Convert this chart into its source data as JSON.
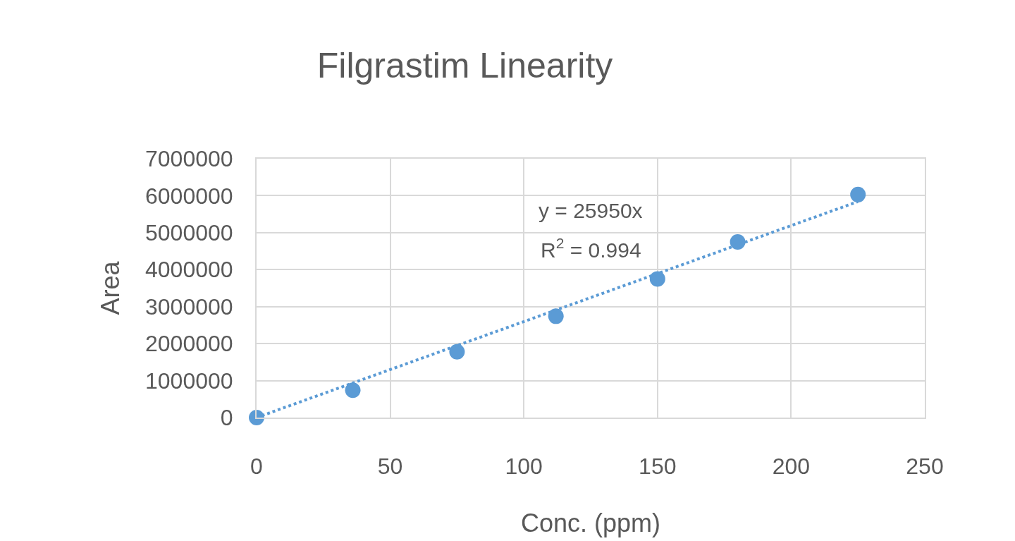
{
  "chart_data": {
    "type": "scatter",
    "title": "Filgrastim Linearity",
    "xlabel": "Conc. (ppm)",
    "ylabel": "Area",
    "x": [
      0,
      36,
      75,
      112,
      150,
      180,
      225
    ],
    "series": [
      {
        "color": "#5b9bd5",
        "marker": "circle",
        "values": [
          0,
          740000,
          1780000,
          2740000,
          3750000,
          4750000,
          6030000
        ]
      },
      {
        "type": "line",
        "color": "#5b9bd5",
        "line_style": "dotted",
        "marker": "none",
        "x": [
          0,
          225
        ],
        "values": [
          0,
          5840000
        ]
      }
    ],
    "annotations": [
      "y = 25950x",
      "R$^{2}$ = 0.994"
    ],
    "xlim": [
      0,
      250
    ],
    "xticks": [
      0,
      50,
      100,
      150,
      200,
      250
    ],
    "ylim": [
      0,
      7000000
    ],
    "yticks": [
      0,
      1000000,
      2000000,
      3000000,
      4000000,
      5000000,
      6000000,
      7000000
    ],
    "grid": true
  }
}
